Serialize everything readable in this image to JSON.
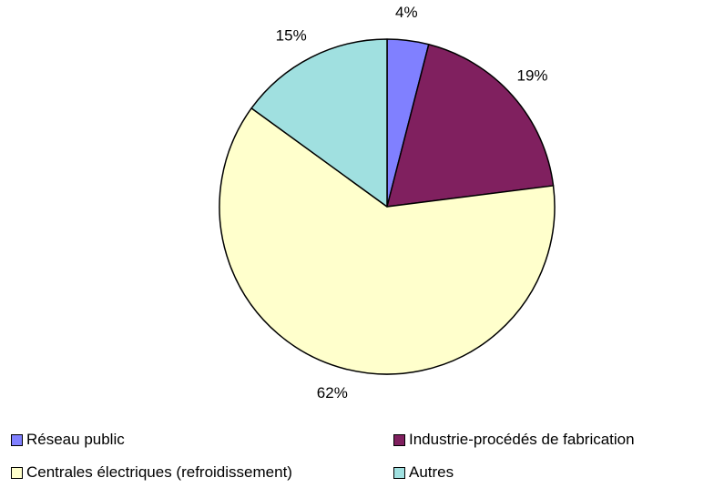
{
  "chart_data": {
    "type": "pie",
    "categories": [
      "Réseau public",
      "Industrie-procédés de fabrication",
      "Centrales électriques (refroidissement)",
      "Autres"
    ],
    "values": [
      4,
      19,
      62,
      15
    ],
    "data_labels": [
      "4%",
      "19%",
      "62%",
      "15%"
    ],
    "colors": [
      "#8080ff",
      "#80205f",
      "#ffffcc",
      "#a0e0e0"
    ],
    "start_angle_deg": 0,
    "direction": "clockwise",
    "legend_position": "bottom"
  }
}
